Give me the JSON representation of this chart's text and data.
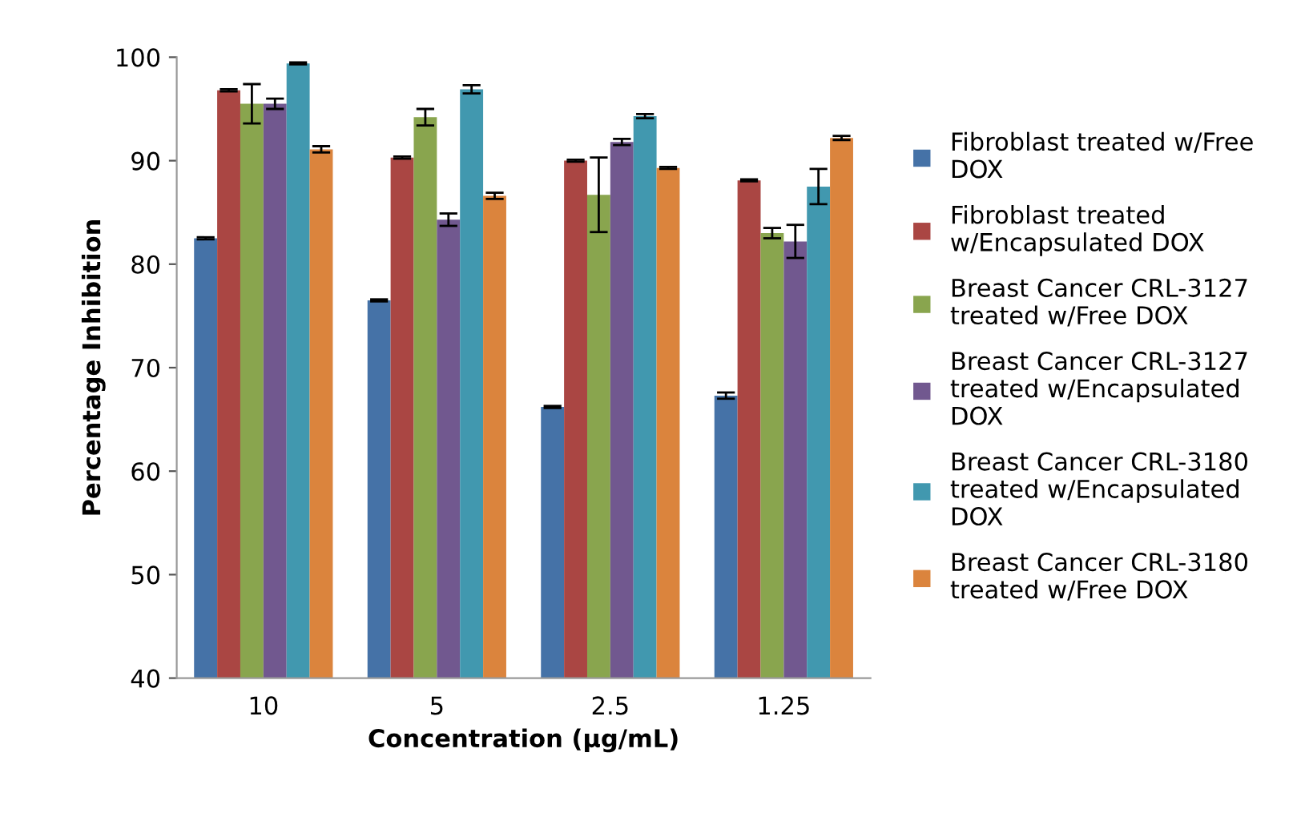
{
  "chart_data": {
    "type": "bar",
    "xlabel": "Concentration (µg/mL)",
    "ylabel": "Percentage Inhibition",
    "categories": [
      "10",
      "5",
      "2.5",
      "1.25"
    ],
    "ylim": [
      40,
      100
    ],
    "yticks": [
      40,
      50,
      60,
      70,
      80,
      90,
      100
    ],
    "grid": false,
    "legend": "right",
    "series": [
      {
        "name": "Fibroblast treated w/Free\nDOX",
        "color": "#4572a7",
        "values": [
          82.5,
          76.5,
          66.2,
          67.3
        ],
        "errors": [
          0.1,
          0.1,
          0.1,
          0.3
        ]
      },
      {
        "name": "Fibroblast treated\nw/Encapsulated DOX",
        "color": "#aa4643",
        "values": [
          96.8,
          90.3,
          90.0,
          88.1
        ],
        "errors": [
          0.1,
          0.1,
          0.1,
          0.1
        ]
      },
      {
        "name": "Breast Cancer CRL-3127\ntreated w/Free DOX",
        "color": "#89a54e",
        "values": [
          95.5,
          94.2,
          86.7,
          83.0
        ],
        "errors": [
          1.9,
          0.8,
          3.6,
          0.5
        ]
      },
      {
        "name": "Breast Cancer CRL-3127\ntreated w/Encapsulated\nDOX",
        "color": "#71588f",
        "values": [
          95.5,
          84.3,
          91.8,
          82.2
        ],
        "errors": [
          0.5,
          0.6,
          0.3,
          1.6
        ]
      },
      {
        "name": "Breast Cancer CRL-3180\ntreated w/Encapsulated\nDOX",
        "color": "#4198af",
        "values": [
          99.4,
          96.9,
          94.3,
          87.5
        ],
        "errors": [
          0.1,
          0.4,
          0.2,
          1.7
        ]
      },
      {
        "name": "Breast Cancer CRL-3180\ntreated w/Free DOX",
        "color": "#db843d",
        "values": [
          91.1,
          86.6,
          89.3,
          92.2
        ],
        "errors": [
          0.3,
          0.3,
          0.1,
          0.2
        ]
      }
    ]
  }
}
